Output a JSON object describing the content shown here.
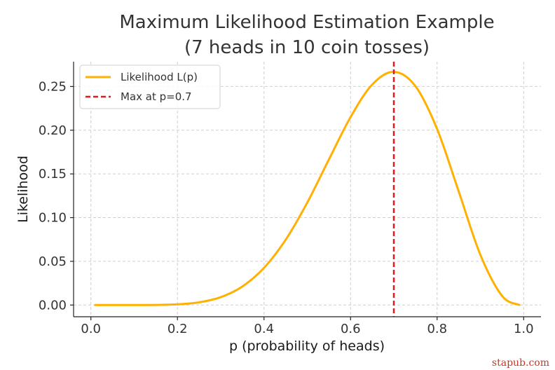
{
  "chart_data": {
    "type": "line",
    "title": "Maximum Likelihood Estimation Example",
    "subtitle": "(7 heads in 10 coin tosses)",
    "xlabel": "p (probability of heads)",
    "ylabel": "Likelihood",
    "xlim": [
      -0.04,
      1.04
    ],
    "ylim": [
      -0.0134,
      0.2784
    ],
    "x_ticks": [
      0.0,
      0.2,
      0.4,
      0.6,
      0.8,
      1.0
    ],
    "x_tick_labels": [
      "0.0",
      "0.2",
      "0.4",
      "0.6",
      "0.8",
      "1.0"
    ],
    "y_ticks": [
      0.0,
      0.05,
      0.1,
      0.15,
      0.2,
      0.25
    ],
    "y_tick_labels": [
      "0.00",
      "0.05",
      "0.10",
      "0.15",
      "0.20",
      "0.25"
    ],
    "grid": true,
    "legend_position": "top-left",
    "series": [
      {
        "name": "Likelihood L(p)",
        "style": "solid",
        "color": "#FFB000",
        "x": [
          0.01,
          0.05,
          0.1,
          0.15,
          0.2,
          0.25,
          0.3,
          0.35,
          0.4,
          0.45,
          0.5,
          0.55,
          0.6,
          0.65,
          0.7,
          0.75,
          0.8,
          0.85,
          0.9,
          0.95,
          0.99
        ],
        "y": [
          0.0,
          0.0,
          0.0,
          0.0001,
          0.0008,
          0.0031,
          0.009,
          0.0212,
          0.0425,
          0.0746,
          0.1172,
          0.1665,
          0.215,
          0.2522,
          0.2668,
          0.2503,
          0.2013,
          0.1298,
          0.0574,
          0.0105,
          0.0001
        ]
      },
      {
        "name": "Max at p=0.7",
        "style": "dashed",
        "color": "#E41A1C",
        "x_value": 0.7
      }
    ]
  },
  "watermark": "stapub.com"
}
